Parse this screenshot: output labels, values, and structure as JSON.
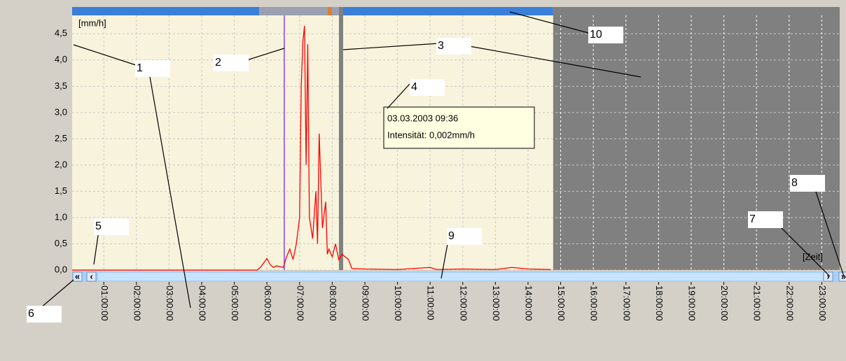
{
  "chart_data": {
    "type": "line",
    "y_label": "[mm/h]",
    "x_label": "[Zeit]",
    "xlim": [
      0.03,
      23.55
    ],
    "ylim": [
      0,
      4.85
    ],
    "xticks": [
      {
        "value": 1,
        "label": "01:00:00"
      },
      {
        "value": 2,
        "label": "02:00:00"
      },
      {
        "value": 3,
        "label": "03:00:00"
      },
      {
        "value": 4,
        "label": "04:00:00"
      },
      {
        "value": 5,
        "label": "05:00:00"
      },
      {
        "value": 6,
        "label": "06:00:00"
      },
      {
        "value": 7,
        "label": "07:00:00"
      },
      {
        "value": 8,
        "label": "08:00:00"
      },
      {
        "value": 9,
        "label": "09:00:00"
      },
      {
        "value": 10,
        "label": "10:00:00"
      },
      {
        "value": 11,
        "label": "11:00:00"
      },
      {
        "value": 12,
        "label": "12:00:00"
      },
      {
        "value": 13,
        "label": "13:00:00"
      },
      {
        "value": 14,
        "label": "14:00:00"
      },
      {
        "value": 15,
        "label": "15:00:00"
      },
      {
        "value": 16,
        "label": "16:00:00"
      },
      {
        "value": 17,
        "label": "17:00:00"
      },
      {
        "value": 18,
        "label": "18:00:00"
      },
      {
        "value": 19,
        "label": "19:00:00"
      },
      {
        "value": 20,
        "label": "20:00:00"
      },
      {
        "value": 21,
        "label": "21:00:00"
      },
      {
        "value": 22,
        "label": "22:00:00"
      },
      {
        "value": 23,
        "label": "23:00:00"
      }
    ],
    "yticks": [
      {
        "value": 0,
        "label": "0,0"
      },
      {
        "value": 0.5,
        "label": "0,5"
      },
      {
        "value": 1,
        "label": "1,0"
      },
      {
        "value": 1.5,
        "label": "1,5"
      },
      {
        "value": 2,
        "label": "2,0"
      },
      {
        "value": 2.5,
        "label": "2,5"
      },
      {
        "value": 3,
        "label": "3,0"
      },
      {
        "value": 3.5,
        "label": "3,5"
      },
      {
        "value": 4,
        "label": "4,0"
      },
      {
        "value": 4.5,
        "label": "4,5"
      }
    ],
    "grid": true,
    "series": [
      {
        "color": "#ff0000",
        "x": [
          0.03,
          5.7,
          5.8,
          6.0,
          6.1,
          6.2,
          6.3,
          6.5,
          6.6,
          6.7,
          6.8,
          6.9,
          7.0,
          7.05,
          7.1,
          7.15,
          7.2,
          7.25,
          7.3,
          7.4,
          7.5,
          7.55,
          7.6,
          7.7,
          7.8,
          7.85,
          7.9,
          8.0,
          8.1,
          8.2,
          8.3,
          8.5,
          8.6,
          9.0,
          10.0,
          11.0,
          11.2,
          12.0,
          13.0,
          13.5,
          14.0,
          14.7
        ],
        "values": [
          0,
          0,
          0.05,
          0.22,
          0.1,
          0.05,
          0.08,
          0.05,
          0.25,
          0.4,
          0.2,
          0.5,
          1.0,
          3.5,
          4.35,
          4.65,
          2.0,
          4.3,
          1.0,
          0.6,
          1.5,
          0.5,
          2.6,
          0.8,
          1.3,
          0.3,
          0.4,
          0.25,
          0.5,
          0.2,
          0.3,
          0.2,
          0.03,
          0.02,
          0.01,
          0.05,
          0.01,
          0.02,
          0.01,
          0.05,
          0.02,
          0.01
        ]
      }
    ],
    "markers": {
      "cursor": 6.53,
      "selection": 8.27,
      "data_end": 14.77
    },
    "tooltip": [
      "03.03.2003 09:36",
      "Intensität: 0,002mm/h"
    ],
    "scrollbar_buttons": [
      "«",
      "‹",
      "›",
      "»"
    ],
    "annotations": [
      "1",
      "2",
      "3",
      "4",
      "5",
      "6",
      "7",
      "8",
      "9",
      "10"
    ]
  }
}
